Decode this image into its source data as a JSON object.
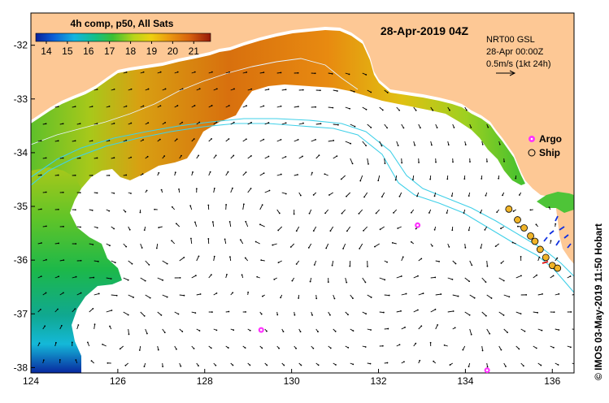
{
  "map": {
    "date_title": "28-Apr-2019 04Z",
    "colorbar": {
      "title": "4h comp, p50, All Sats",
      "tick_labels": [
        "14",
        "15",
        "16",
        "17",
        "18",
        "19",
        "20",
        "21"
      ],
      "range": [
        13.5,
        21.8
      ]
    },
    "info": {
      "line1": "NRT00 GSL",
      "line2": "28-Apr 00:00Z",
      "line3": "0.5m/s (1kt 24h)"
    },
    "legend": {
      "argo_label": "Argo",
      "ship_label": "Ship"
    },
    "credit": "© IMOS 03-May-2019 11:50 Hobart",
    "x_ticks": [
      "124",
      "126",
      "128",
      "130",
      "132",
      "134",
      "136"
    ],
    "y_ticks": [
      "-32",
      "-33",
      "-34",
      "-35",
      "-36",
      "-37",
      "-38"
    ],
    "lon_range": [
      124,
      136.5
    ],
    "lat_range": [
      -38.1,
      -31.4
    ],
    "argo_floats": [
      [
        132.9,
        -35.35
      ],
      [
        129.3,
        -37.3
      ],
      [
        134.5,
        -38.05
      ]
    ],
    "ship_positions": [
      [
        135.0,
        -35.05
      ],
      [
        135.2,
        -35.25
      ],
      [
        135.35,
        -35.4
      ],
      [
        135.5,
        -35.55
      ],
      [
        135.6,
        -35.65
      ],
      [
        135.72,
        -35.8
      ],
      [
        135.85,
        -35.95
      ],
      [
        136.0,
        -36.1
      ],
      [
        136.12,
        -36.15
      ]
    ],
    "colors": {
      "land": "#fdc895",
      "ocean": "#ffffff",
      "argo": "#ff33ff",
      "ship": "#f0b429",
      "isobath": "#40d0e8"
    }
  }
}
